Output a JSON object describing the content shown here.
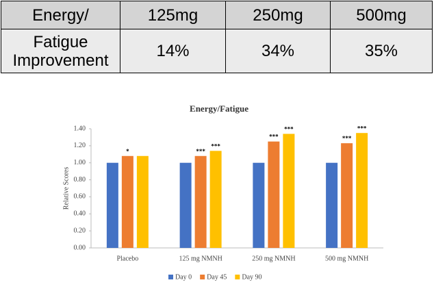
{
  "table": {
    "rows": [
      [
        "Energy/",
        "125mg",
        "250mg",
        "500mg"
      ],
      [
        "Fatigue Improvement",
        "14%",
        "34%",
        "35%"
      ]
    ]
  },
  "chart_data": {
    "type": "bar",
    "title": "Energy/Fatigue",
    "ylabel": "Relative Scores",
    "categories": [
      "Placebo",
      "125 mg NMNH",
      "250 mg NMNH",
      "500 mg NMNH"
    ],
    "series": [
      {
        "name": "Day 0",
        "color": "#4472c4",
        "values": [
          1.0,
          1.0,
          1.0,
          1.0
        ]
      },
      {
        "name": "Day 45",
        "color": "#ed7d31",
        "values": [
          1.08,
          1.08,
          1.25,
          1.23
        ],
        "annotations": [
          "*",
          "***",
          "***",
          "***"
        ]
      },
      {
        "name": "Day 90",
        "color": "#ffc000",
        "values": [
          1.08,
          1.14,
          1.34,
          1.35
        ],
        "annotations": [
          null,
          "***",
          "***",
          "***"
        ]
      }
    ],
    "ylim": [
      0,
      1.4
    ],
    "yticks": [
      {
        "value": 0,
        "label": "0.00"
      },
      {
        "value": 0.2,
        "label": "0.20"
      },
      {
        "value": 0.4,
        "label": "0.40"
      },
      {
        "value": 0.6,
        "label": "0.60"
      },
      {
        "value": 0.8,
        "label": "0.80"
      },
      {
        "value": 1.0,
        "label": "1.00"
      },
      {
        "value": 1.2,
        "label": "1.20"
      },
      {
        "value": 1.4,
        "label": "1.40"
      }
    ],
    "grid": false,
    "legend": "bottom"
  }
}
